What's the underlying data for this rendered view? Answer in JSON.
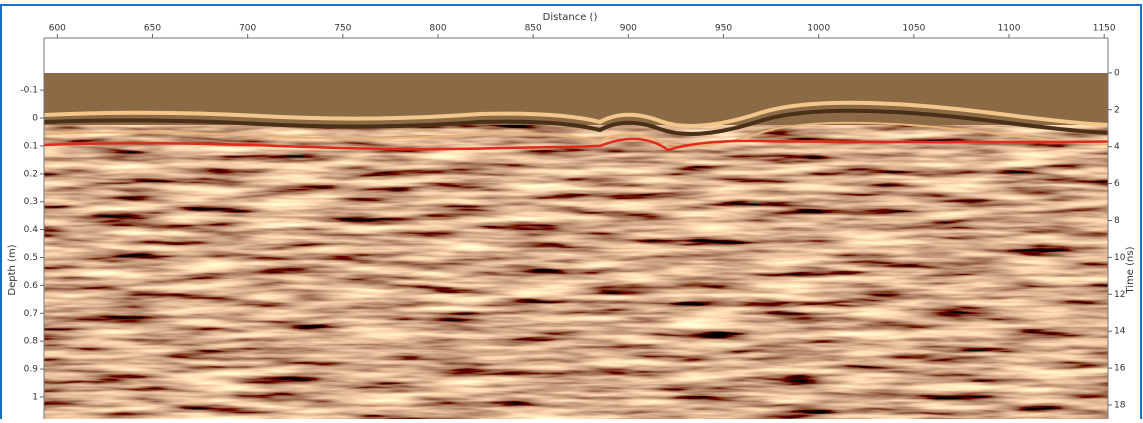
{
  "chart_data": {
    "type": "radargram",
    "xlabel": "Distance ()",
    "ylabel": "Depth (m)",
    "y2label": "Time (ns)",
    "xlim": [
      593,
      1152
    ],
    "xticks": [
      600,
      650,
      700,
      750,
      800,
      850,
      900,
      950,
      1000,
      1050,
      1100,
      1150
    ],
    "ylim": [
      -0.287,
      1.079
    ],
    "yticks": [
      -0.1,
      0,
      0.1,
      0.2,
      0.3,
      0.4,
      0.5,
      0.6,
      0.7,
      0.8,
      0.9,
      1
    ],
    "y2lim": [
      -1.89,
      18.76
    ],
    "y2ticks": [
      0,
      2,
      4,
      6,
      8,
      10,
      12,
      14,
      16,
      18
    ]
  }
}
